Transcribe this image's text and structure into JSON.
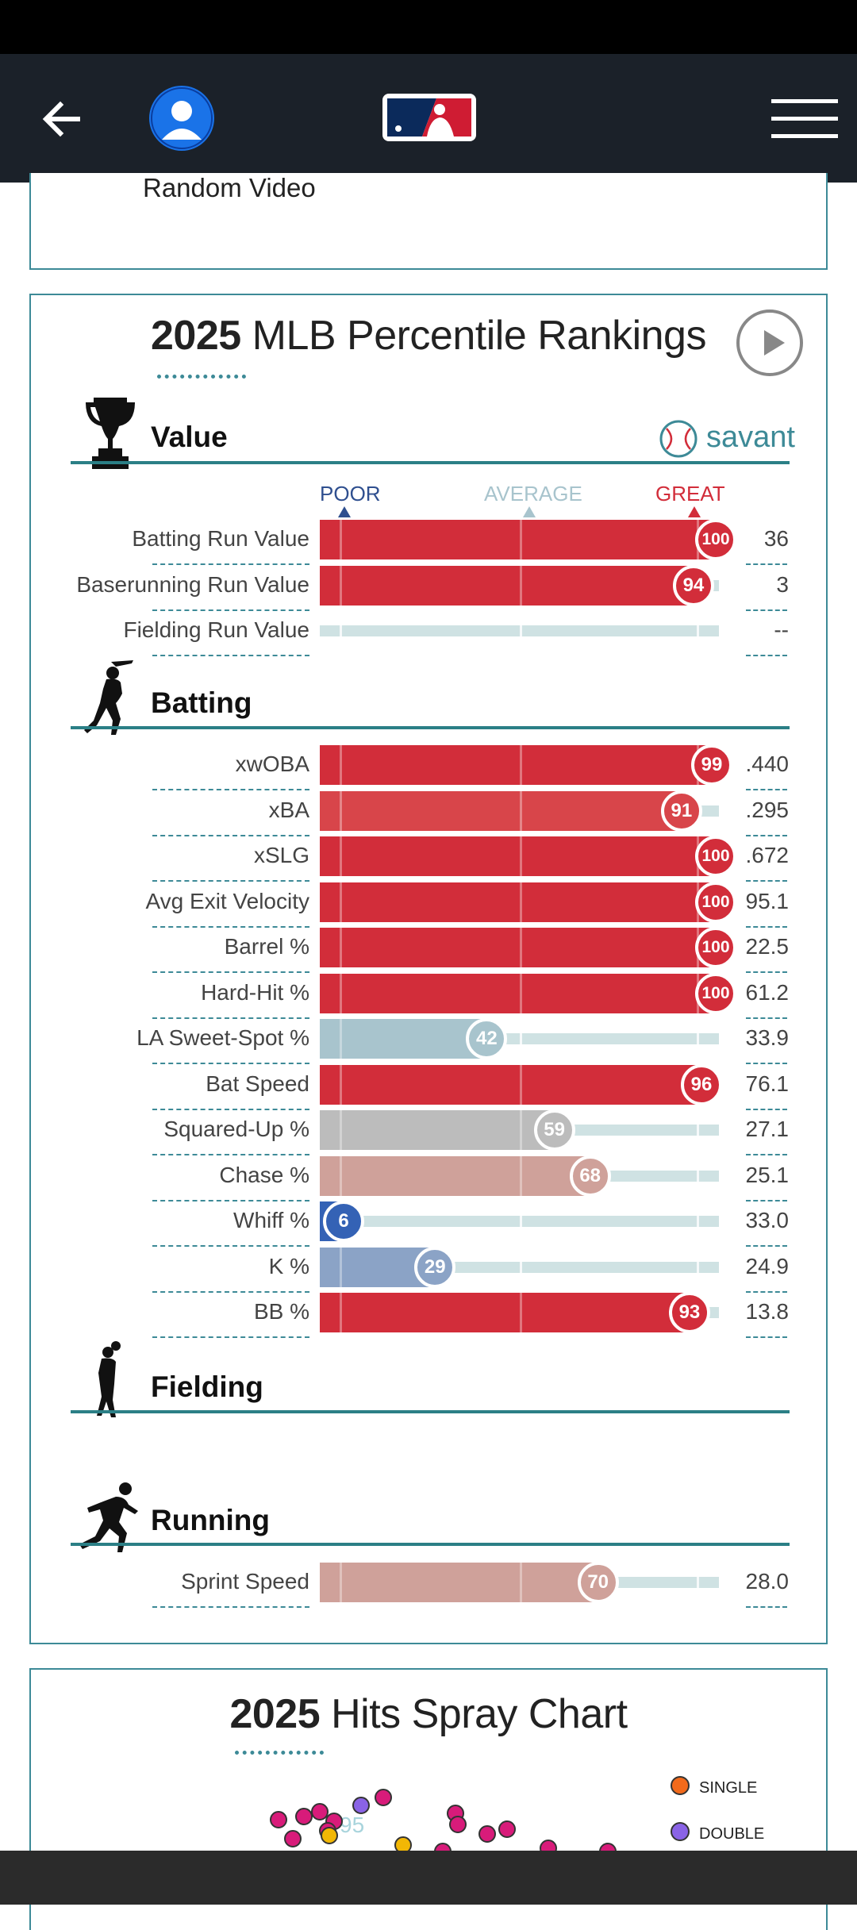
{
  "nav": {
    "logo": "MLB"
  },
  "top_card": {
    "text": "Random Video"
  },
  "rankings": {
    "year": "2025",
    "title": "MLB Percentile Rankings",
    "savant": "savant",
    "scale": {
      "poor": "POOR",
      "average": "AVERAGE",
      "great": "GREAT"
    },
    "colors": {
      "great": "#d22d3a",
      "above": "#d8454a",
      "avg_high": "#cfa19a",
      "avg": "#bcbcbc",
      "avg_low": "#a8c4cd",
      "below": "#8ba3c6",
      "poor": "#3462b5"
    },
    "sections": {
      "value": "Value",
      "batting": "Batting",
      "fielding": "Fielding",
      "running": "Running"
    },
    "value_rows": [
      {
        "label": "Batting Run Value",
        "percentile": 100,
        "value": "36"
      },
      {
        "label": "Baserunning Run Value",
        "percentile": 94,
        "value": "3"
      },
      {
        "label": "Fielding Run Value",
        "percentile": null,
        "value": "--"
      }
    ],
    "batting_rows": [
      {
        "label": "xwOBA",
        "percentile": 99,
        "value": ".440"
      },
      {
        "label": "xBA",
        "percentile": 91,
        "value": ".295"
      },
      {
        "label": "xSLG",
        "percentile": 100,
        "value": ".672"
      },
      {
        "label": "Avg Exit Velocity",
        "percentile": 100,
        "value": "95.1"
      },
      {
        "label": "Barrel %",
        "percentile": 100,
        "value": "22.5"
      },
      {
        "label": "Hard-Hit %",
        "percentile": 100,
        "value": "61.2"
      },
      {
        "label": "LA Sweet-Spot %",
        "percentile": 42,
        "value": "33.9"
      },
      {
        "label": "Bat Speed",
        "percentile": 96,
        "value": "76.1"
      },
      {
        "label": "Squared-Up %",
        "percentile": 59,
        "value": "27.1"
      },
      {
        "label": "Chase %",
        "percentile": 68,
        "value": "25.1"
      },
      {
        "label": "Whiff %",
        "percentile": 6,
        "value": "33.0"
      },
      {
        "label": "K %",
        "percentile": 29,
        "value": "24.9"
      },
      {
        "label": "BB %",
        "percentile": 93,
        "value": "13.8"
      }
    ],
    "running_rows": [
      {
        "label": "Sprint Speed",
        "percentile": 70,
        "value": "28.0"
      }
    ]
  },
  "spray": {
    "year": "2025",
    "title": "Hits Spray Chart",
    "faint_label": "95",
    "legend": [
      {
        "label": "SINGLE",
        "color": "#f26a1b"
      },
      {
        "label": "DOUBLE",
        "color": "#8a63e6"
      }
    ]
  }
}
